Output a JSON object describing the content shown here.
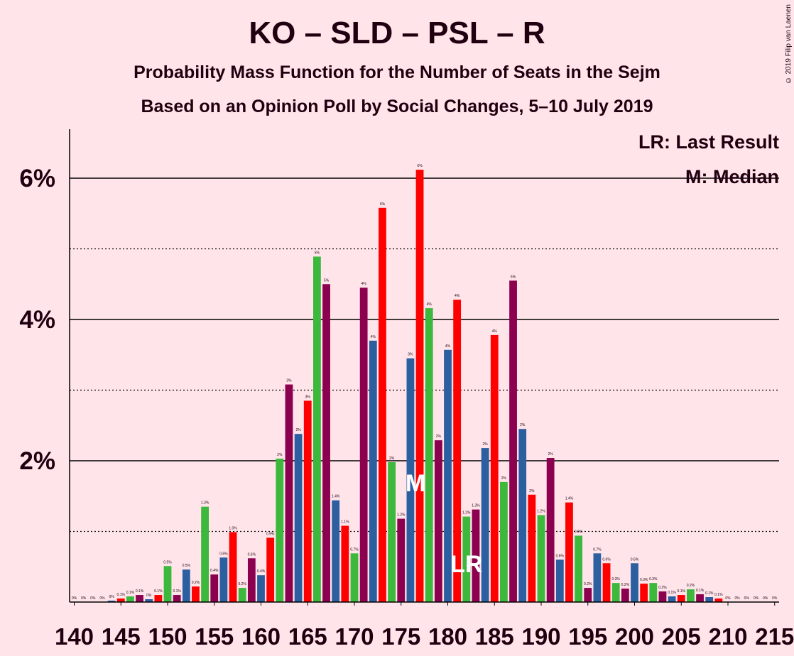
{
  "title": "KO – SLD – PSL – R",
  "subtitle": "Probability Mass Function for the Number of Seats in the Sejm",
  "subtitle2": "Based on an Opinion Poll by Social Changes, 5–10 July 2019",
  "copyright": "© 2019 Filip van Laenen",
  "legend": {
    "lr": "LR: Last Result",
    "median": "M: Median"
  },
  "markers": {
    "lr_label": "LR",
    "median_label": "M",
    "last_result_seat": 182,
    "median_seat": 177
  },
  "colors": {
    "background": "#FFE5EA",
    "red": "#FF0000",
    "green": "#3CB83C",
    "blue": "#2B5FA0",
    "purple": "#8C0050",
    "text": "#200010"
  },
  "chart_data": {
    "type": "bar",
    "x": [
      140,
      141,
      142,
      143,
      144,
      145,
      146,
      147,
      148,
      149,
      150,
      151,
      152,
      153,
      154,
      155,
      156,
      157,
      158,
      159,
      160,
      161,
      162,
      163,
      164,
      165,
      166,
      167,
      168,
      169,
      170,
      171,
      172,
      173,
      174,
      175,
      176,
      177,
      178,
      179,
      180,
      181,
      182,
      183,
      184,
      185,
      186,
      187,
      188,
      189,
      190,
      191,
      192,
      193,
      194,
      195,
      196,
      197,
      198,
      199,
      200,
      201,
      202,
      203,
      204,
      205,
      206,
      207,
      208,
      209,
      210,
      211,
      212,
      213,
      214,
      215
    ],
    "values": [
      0,
      0,
      0,
      0,
      0.02,
      0.05,
      0.08,
      0.1,
      0.04,
      0.1,
      0.51,
      0.1,
      0.46,
      0.22,
      1.35,
      0.39,
      0.63,
      0.99,
      0.2,
      0.62,
      0.38,
      0.91,
      2.03,
      3.08,
      2.38,
      2.85,
      4.89,
      4.5,
      1.44,
      1.08,
      0.69,
      4.45,
      3.7,
      5.58,
      1.98,
      1.18,
      3.45,
      6.12,
      4.16,
      2.29,
      3.57,
      4.28,
      1.21,
      1.31,
      2.18,
      3.78,
      1.7,
      4.55,
      2.45,
      1.52,
      1.23,
      2.04,
      0.6,
      1.41,
      0.94,
      0.2,
      0.69,
      0.55,
      0.27,
      0.19,
      0.55,
      0.26,
      0.27,
      0.15,
      0.08,
      0.1,
      0.18,
      0.11,
      0.07,
      0.05,
      0,
      0,
      0,
      0,
      0,
      0
    ],
    "labels": [
      "0%",
      "0%",
      "0%",
      "0%",
      "0%",
      "0.1%",
      "0.1%",
      "0.1%",
      "0%",
      "0.1%",
      "0.5%",
      "0.1%",
      "0.5%",
      "0.2%",
      "1.3%",
      "0.4%",
      "0.6%",
      "1.0%",
      "0.2%",
      "0.6%",
      "0.4%",
      "0.9%",
      "2%",
      "3%",
      "2%",
      "3%",
      "5%",
      "5%",
      "1.4%",
      "1.1%",
      "0.7%",
      "4%",
      "4%",
      "6%",
      "2%",
      "1.2%",
      "3%",
      "6%",
      "4%",
      "2%",
      "4%",
      "4%",
      "1.2%",
      "1.3%",
      "2%",
      "4%",
      "2%",
      "5%",
      "2%",
      "2%",
      "1.2%",
      "2%",
      "0.6%",
      "1.4%",
      "0.9%",
      "0.2%",
      "0.7%",
      "0.6%",
      "0.3%",
      "0.2%",
      "0.6%",
      "0.3%",
      "0.3%",
      "0.2%",
      "0.1%",
      "0.1%",
      "0.2%",
      "0.1%",
      "0.1%",
      "0.1%",
      "0%",
      "0%",
      "0%",
      "0%",
      "0%",
      "0%"
    ],
    "colors": [
      "red",
      "green",
      "blue",
      "purple",
      "blue",
      "red",
      "green",
      "purple",
      "blue",
      "red",
      "green",
      "purple",
      "blue",
      "red",
      "green",
      "purple",
      "blue",
      "red",
      "green",
      "purple",
      "blue",
      "red",
      "green",
      "purple",
      "blue",
      "red",
      "green",
      "purple",
      "blue",
      "red",
      "green",
      "purple",
      "blue",
      "red",
      "green",
      "purple",
      "blue",
      "red",
      "green",
      "purple",
      "blue",
      "red",
      "green",
      "purple",
      "blue",
      "red",
      "green",
      "purple",
      "blue",
      "red",
      "green",
      "purple",
      "blue",
      "red",
      "green",
      "purple",
      "blue",
      "red",
      "green",
      "purple",
      "blue",
      "red",
      "green",
      "purple",
      "blue",
      "red",
      "green",
      "purple",
      "blue",
      "red",
      "green",
      "purple",
      "blue",
      "red",
      "green",
      "purple"
    ],
    "xticks": [
      "140",
      "145",
      "150",
      "155",
      "160",
      "165",
      "170",
      "175",
      "180",
      "185",
      "190",
      "195",
      "200",
      "205",
      "210",
      "215"
    ],
    "yticks": [
      "2%",
      "4%",
      "6%"
    ],
    "ylim": [
      0,
      6.7
    ],
    "solid_gridlines": [
      2,
      4,
      6
    ],
    "dotted_gridlines": [
      1,
      3,
      5
    ]
  }
}
